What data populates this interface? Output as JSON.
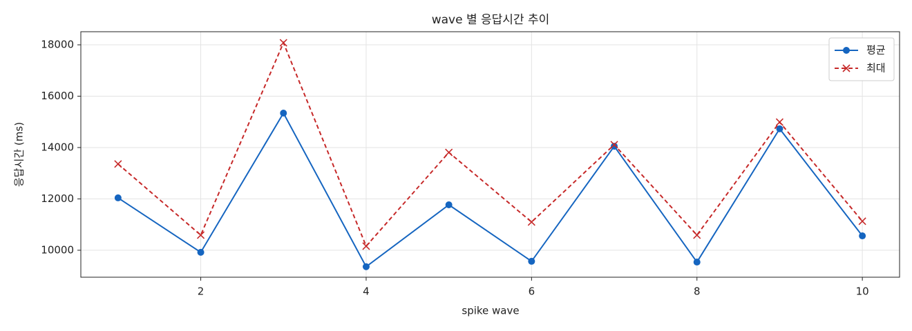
{
  "chart_data": {
    "type": "line",
    "title": "wave 별 응답시간 추이",
    "x_label": "spike wave",
    "y_label": "응답시간 (ms)",
    "x": [
      1,
      2,
      3,
      4,
      5,
      6,
      7,
      8,
      9,
      10
    ],
    "series": [
      {
        "name": "평균",
        "color": "#1565c0",
        "marker": "o",
        "linestyle": "solid",
        "values": [
          12040,
          9920,
          15340,
          9360,
          11770,
          9570,
          14050,
          9540,
          14730,
          10560
        ]
      },
      {
        "name": "최대",
        "color": "#c62828",
        "marker": "x",
        "linestyle": "dashed",
        "values": [
          13360,
          10590,
          18080,
          10160,
          13810,
          11100,
          14110,
          10590,
          14990,
          11130
        ]
      }
    ],
    "xlim": [
      0.55,
      10.45
    ],
    "xticks": [
      2,
      4,
      6,
      8,
      10
    ],
    "ylim": [
      8950,
      18510
    ],
    "yticks": [
      10000,
      12000,
      14000,
      16000,
      18000
    ],
    "grid": true,
    "legend": "upper right"
  }
}
